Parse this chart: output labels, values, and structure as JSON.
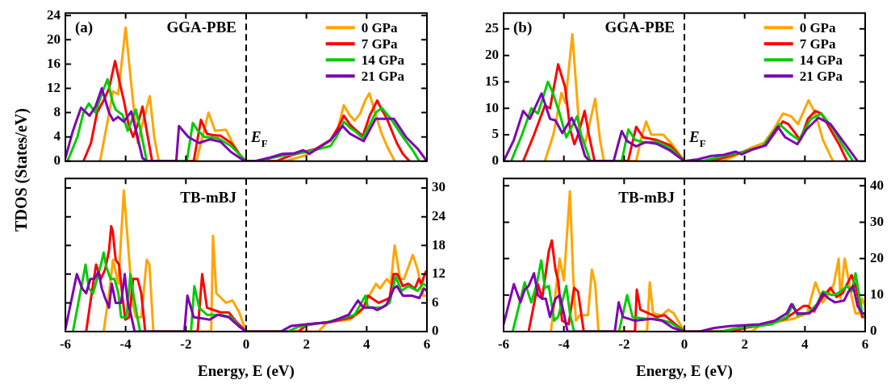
{
  "chart_data": [
    {
      "type": "line",
      "ylabel": "TDOS (States/eV)",
      "xlim": [
        -6,
        6
      ],
      "xticks": [
        -6,
        -4,
        -2,
        0,
        2,
        4,
        6
      ],
      "ylim": [
        0,
        24.4
      ],
      "yticks": [
        0,
        4,
        8,
        12,
        16,
        20,
        24
      ],
      "tick_labels": "y",
      "legend": "top right",
      "marker": "none",
      "line_style": "solid",
      "annotations": [
        "(a)",
        "GGA-PBE"
      ],
      "ref_lines": [
        {
          "axis": "x",
          "value": 0,
          "label": "E$_{F}$",
          "line_style": "dashed",
          "color": "#000000"
        }
      ],
      "series": [
        {
          "name": "0 GPa",
          "color": "#ffa500",
          "x": [
            -4.85,
            -4.62,
            -4.42,
            -4.25,
            -4.0,
            -3.8,
            -3.6,
            -3.45,
            -3.2,
            -3.05,
            -2.9,
            -1.65,
            -1.45,
            -1.25,
            -1.03,
            -0.67,
            -0.45,
            -0.2,
            0,
            1.3,
            2.0,
            2.5,
            2.8,
            3.05,
            3.24,
            3.45,
            3.6,
            3.78,
            3.95,
            4.09,
            4.31,
            4.5,
            4.67,
            4.93
          ],
          "values": [
            0,
            6,
            11.5,
            11,
            22,
            12,
            3,
            6,
            10.7,
            4,
            0,
            0,
            4,
            8,
            5,
            5.2,
            3,
            1,
            0,
            0,
            1,
            2.5,
            3.3,
            5.5,
            9.2,
            7.5,
            6.7,
            7.8,
            10,
            11.2,
            7.5,
            4.5,
            2.5,
            0
          ]
        },
        {
          "name": "7 GPa",
          "color": "#ff0000",
          "x": [
            -5.4,
            -5.15,
            -4.95,
            -4.73,
            -4.55,
            -4.35,
            -4.2,
            -4.06,
            -3.9,
            -3.75,
            -3.6,
            -3.44,
            -3.3,
            -3.12,
            -1.74,
            -1.6,
            -1.5,
            -1.3,
            -1.1,
            -0.85,
            -0.5,
            -0.2,
            0,
            1.0,
            1.5,
            2.3,
            2.8,
            3.05,
            3.24,
            3.45,
            3.6,
            3.87,
            4.1,
            4.35,
            4.5,
            4.67,
            5.0,
            5.2,
            5.42
          ],
          "values": [
            0,
            3,
            8,
            10,
            12,
            16.5,
            13,
            10,
            6,
            4,
            6,
            9,
            5,
            0,
            0,
            4,
            6.8,
            4.5,
            4.3,
            4.2,
            3,
            1,
            0,
            0,
            1,
            2,
            3.5,
            5.5,
            7.5,
            6,
            5.3,
            4.1,
            7.5,
            10,
            8.5,
            7,
            3,
            1.2,
            0
          ]
        },
        {
          "name": "14 GPa",
          "color": "#00cc00",
          "x": [
            -5.93,
            -5.6,
            -5.4,
            -5.22,
            -5.0,
            -4.8,
            -4.6,
            -4.45,
            -4.33,
            -4.1,
            -3.93,
            -3.66,
            -3.5,
            -3.3,
            -1.97,
            -1.77,
            -1.6,
            -1.39,
            -0.94,
            -0.5,
            -0.2,
            0,
            0.5,
            0.8,
            1.3,
            2.0,
            2.8,
            3.0,
            3.24,
            3.45,
            3.6,
            3.87,
            4.1,
            4.3,
            4.5,
            4.8,
            5.2,
            5.5,
            5.75
          ],
          "values": [
            0,
            4,
            8,
            9.5,
            8,
            11,
            13.5,
            10,
            8.5,
            7.6,
            5,
            8.5,
            5,
            0,
            0,
            6.3,
            5,
            4,
            3.8,
            2.5,
            1,
            0,
            0,
            0.5,
            1,
            1.5,
            2.5,
            4,
            6.5,
            5.5,
            5,
            3.8,
            6,
            8,
            8.8,
            7,
            4,
            2,
            0
          ]
        },
        {
          "name": "21 GPa",
          "color": "#7f00b2",
          "x": [
            -6,
            -5.75,
            -5.48,
            -5.2,
            -5.0,
            -4.79,
            -4.55,
            -4.41,
            -4.25,
            -4.06,
            -3.81,
            -3.61,
            -3.44,
            -3.3,
            -2.32,
            -2.23,
            -1.92,
            -1.57,
            -1.2,
            -0.85,
            -0.5,
            -0.2,
            0,
            0.3,
            0.8,
            1.2,
            1.6,
            1.9,
            2.1,
            2.4,
            2.8,
            3.2,
            3.45,
            3.9,
            4.3,
            4.5,
            4.9,
            5.3,
            5.7,
            6
          ],
          "values": [
            0.5,
            5,
            8.8,
            7.5,
            9,
            12,
            8,
            6.7,
            7.3,
            6.5,
            8.2,
            4,
            0.5,
            0,
            0,
            5.8,
            4,
            3,
            3.6,
            3.2,
            1.5,
            0.5,
            0,
            0,
            0.6,
            1.2,
            1.3,
            1.8,
            1.2,
            2.2,
            3.5,
            5.8,
            4.5,
            3.3,
            7,
            7,
            7,
            4,
            2,
            0
          ]
        }
      ]
    },
    {
      "type": "line",
      "xlabel": "Energy, E (eV)",
      "xlim": [
        -6,
        6
      ],
      "xticks": [
        -6,
        -4,
        -2,
        0,
        2,
        4,
        6
      ],
      "y2lim": [
        0,
        32
      ],
      "y2ticks": [
        0,
        6,
        12,
        18,
        24,
        30
      ],
      "marker": "none",
      "line_style": "solid",
      "annotations": [
        "TB-mBJ"
      ],
      "ref_lines": [
        {
          "axis": "x",
          "value": 0,
          "line_style": "dashed",
          "color": "#000000"
        }
      ],
      "series": [
        {
          "color": "#ffa500",
          "axis": "y2",
          "x": [
            -4.73,
            -4.55,
            -4.42,
            -4.24,
            -4.06,
            -3.88,
            -3.77,
            -3.66,
            -3.48,
            -3.3,
            -3.21,
            -3.08,
            -1.16,
            -1.1,
            -0.99,
            -0.67,
            -0.45,
            -0.23,
            0,
            2.4,
            2.7,
            3.42,
            3.78,
            4.04,
            4.31,
            4.44,
            4.67,
            4.8,
            4.93,
            5.11,
            5.24,
            5.53,
            5.69,
            5.87,
            6
          ],
          "values": [
            0,
            8,
            15,
            10,
            29.5,
            15,
            6,
            3,
            3,
            15,
            14,
            0,
            0,
            20,
            8,
            6,
            6.5,
            4,
            0,
            0,
            2,
            2.5,
            4,
            7,
            10,
            9,
            11,
            10,
            18,
            11,
            11,
            16,
            13,
            7.5,
            7.5
          ]
        },
        {
          "color": "#ff0000",
          "axis": "y2",
          "x": [
            -5.31,
            -5.15,
            -4.98,
            -4.82,
            -4.68,
            -4.55,
            -4.48,
            -4.43,
            -4.33,
            -4.22,
            -4.1,
            -4.01,
            -3.88,
            -3.75,
            -3.6,
            -3.48,
            -3.35,
            -1.61,
            -1.46,
            -1.3,
            -0.85,
            -0.58,
            -0.32,
            0,
            1.73,
            2.04,
            2.8,
            3.51,
            3.91,
            4.04,
            4.4,
            4.76,
            4.89,
            5.02,
            5.2,
            5.38,
            5.6,
            5.73,
            5.82,
            5.96,
            6
          ],
          "values": [
            0,
            7,
            14,
            11,
            13,
            17,
            22,
            21,
            15,
            14,
            7,
            2.5,
            3,
            11,
            11,
            8,
            0,
            0,
            12,
            5,
            4,
            4,
            2,
            0,
            0,
            1.5,
            2,
            3,
            5,
            7.5,
            6,
            7,
            12,
            12,
            9.5,
            10,
            9,
            11,
            10,
            12.5,
            12
          ]
        },
        {
          "color": "#00cc00",
          "axis": "y2",
          "x": [
            -5.75,
            -5.33,
            -5.22,
            -5.08,
            -4.82,
            -4.73,
            -4.64,
            -4.5,
            -4.37,
            -4.24,
            -4.15,
            -3.97,
            -3.84,
            -3.75,
            -3.61,
            -3.52,
            -1.83,
            -1.72,
            -1.56,
            -1.3,
            -0.85,
            -0.5,
            -0.22,
            0,
            1.38,
            1.73,
            2.7,
            3.6,
            3.96,
            4.04,
            4.49,
            4.76,
            4.96,
            5.16,
            5.38,
            5.69,
            5.87,
            6
          ],
          "values": [
            0,
            14,
            9,
            8,
            14,
            16.5,
            13.5,
            11,
            11,
            8,
            3,
            3,
            12,
            8,
            3,
            0,
            0,
            9.5,
            5,
            3.5,
            3.5,
            3,
            1,
            0,
            0,
            1,
            2,
            3.5,
            7.5,
            5,
            5,
            6,
            11.5,
            8.5,
            9.5,
            8.5,
            10,
            9.5
          ]
        },
        {
          "color": "#7f00b2",
          "axis": "y2",
          "x": [
            -6,
            -5.62,
            -5.44,
            -5.31,
            -5.17,
            -5.04,
            -4.9,
            -4.79,
            -4.68,
            -4.55,
            -4.46,
            -4.33,
            -4.15,
            -4.03,
            -3.93,
            -3.84,
            -3.7,
            -2.05,
            -1.95,
            -1.74,
            -1.21,
            -0.94,
            -0.58,
            -0.22,
            0,
            1.15,
            1.5,
            2.0,
            2.8,
            3.4,
            3.71,
            3.9,
            4.2,
            4.35,
            4.65,
            4.9,
            5.0,
            5.2,
            5.5,
            5.75,
            5.9,
            6
          ],
          "values": [
            0.5,
            12,
            9,
            8,
            11,
            11,
            12.5,
            9,
            7,
            5,
            10,
            6,
            6,
            12,
            6,
            4,
            0,
            0,
            7.5,
            3,
            2.5,
            3.5,
            3,
            1,
            0,
            0,
            1.2,
            1.5,
            2,
            3.5,
            6.5,
            5,
            5,
            4.5,
            5.5,
            9,
            9.5,
            7.5,
            7.5,
            7,
            9,
            8.5
          ]
        }
      ]
    },
    {
      "type": "line",
      "xlim": [
        -6,
        6
      ],
      "xticks": [
        -6,
        -4,
        -2,
        0,
        2,
        4,
        6
      ],
      "ylim": [
        0,
        28
      ],
      "yticks": [
        0,
        5,
        10,
        15,
        20,
        25
      ],
      "tick_labels": "y",
      "legend": "top right",
      "marker": "none",
      "line_style": "solid",
      "annotations": [
        "(b)",
        "GGA-PBE"
      ],
      "ref_lines": [
        {
          "axis": "x",
          "value": 0,
          "label": "E$_{F}$",
          "line_style": "dashed",
          "color": "#000000"
        }
      ],
      "series": [
        {
          "name": "0 GPa",
          "color": "#ffa500",
          "x": [
            -4.63,
            -4.35,
            -4.08,
            -3.95,
            -3.72,
            -3.47,
            -3.29,
            -2.96,
            -2.8,
            -2.67,
            -1.6,
            -1.45,
            -1.27,
            -1.1,
            -0.7,
            -0.38,
            0,
            1.22,
            1.67,
            2.2,
            2.65,
            2.96,
            3.27,
            3.54,
            3.77,
            4.12,
            4.35,
            4.6,
            4.93
          ],
          "values": [
            0,
            5,
            12.9,
            11,
            24,
            5,
            3.5,
            11.8,
            4,
            0,
            0,
            4,
            7.5,
            5,
            5,
            3,
            0,
            0,
            1,
            2.5,
            3.5,
            6,
            9,
            8.5,
            7,
            11.5,
            9,
            4,
            0
          ]
        },
        {
          "name": "7 GPa",
          "color": "#ff0000",
          "x": [
            -5.35,
            -4.99,
            -4.63,
            -4.46,
            -4.19,
            -3.96,
            -3.79,
            -3.65,
            -3.53,
            -3.31,
            -3.17,
            -2.98,
            -1.87,
            -1.6,
            -1.37,
            -0.92,
            -0.47,
            0,
            0.9,
            1.5,
            2.1,
            2.7,
            3.27,
            3.45,
            3.85,
            4.1,
            4.35,
            4.55,
            4.85,
            5.15,
            5.4
          ],
          "values": [
            0,
            5,
            10.5,
            10,
            18.3,
            14,
            6,
            3.2,
            5,
            9.5,
            5,
            0,
            0,
            6.5,
            4.5,
            4,
            3,
            0,
            0,
            1,
            2,
            3,
            7.5,
            7,
            4,
            8,
            9.5,
            9,
            6,
            3,
            0
          ]
        },
        {
          "name": "14 GPa",
          "color": "#00cc00",
          "x": [
            -5.75,
            -5.39,
            -5.08,
            -4.86,
            -4.53,
            -4.37,
            -4.14,
            -3.92,
            -3.56,
            -3.43,
            -3.12,
            -2.08,
            -1.86,
            -1.63,
            -1.28,
            -0.92,
            -0.47,
            0,
            0.6,
            1.3,
            2.0,
            2.6,
            3.15,
            3.55,
            3.8,
            4.2,
            4.55,
            4.95,
            5.25,
            5.6
          ],
          "values": [
            0,
            5,
            10,
            9,
            15,
            13,
            9,
            4.5,
            8.5,
            5,
            0,
            0,
            6,
            4,
            3.5,
            3.7,
            2.5,
            0,
            0,
            1,
            1.8,
            2.8,
            7,
            5,
            4,
            8,
            9,
            6,
            3,
            0
          ]
        },
        {
          "name": "21 GPa",
          "color": "#7f00b2",
          "x": [
            -6,
            -5.66,
            -5.35,
            -5.13,
            -4.74,
            -4.46,
            -4.28,
            -4.05,
            -3.74,
            -3.56,
            -3.3,
            -3.15,
            -2.35,
            -2.08,
            -1.9,
            -1.6,
            -1.28,
            -0.92,
            -0.47,
            0,
            0.4,
            0.9,
            1.3,
            1.7,
            1.9,
            2.3,
            2.7,
            3.1,
            3.35,
            3.75,
            4.05,
            4.45,
            4.85,
            5.3,
            5.75
          ],
          "values": [
            0,
            4,
            9.5,
            8,
            12.8,
            8,
            7.7,
            5.3,
            8.2,
            6,
            1,
            0,
            0,
            5.7,
            3.8,
            2.8,
            3.6,
            3.3,
            2,
            0,
            0.3,
            1,
            1.2,
            1.8,
            1.3,
            2.3,
            3,
            6.5,
            4.5,
            3.2,
            6,
            8.2,
            7,
            3.5,
            0
          ]
        }
      ]
    },
    {
      "type": "line",
      "xlabel": "Energy, E (eV)",
      "xlim": [
        -6,
        6
      ],
      "xticks": [
        -6,
        -4,
        -2,
        0,
        2,
        4,
        6
      ],
      "y2lim": [
        0,
        42
      ],
      "y2ticks": [
        0,
        10,
        20,
        30,
        40
      ],
      "marker": "none",
      "line_style": "solid",
      "annotations": [
        "TB-mBJ"
      ],
      "ref_lines": [
        {
          "axis": "x",
          "value": 0,
          "line_style": "dashed",
          "color": "#000000"
        }
      ],
      "series": [
        {
          "color": "#ffa500",
          "axis": "y2",
          "x": [
            -4.43,
            -4.14,
            -4.0,
            -3.8,
            -3.69,
            -3.6,
            -3.47,
            -3.2,
            -3.07,
            -2.96,
            -2.85,
            -1.24,
            -1.15,
            -1.04,
            -0.75,
            -0.53,
            -0.35,
            0,
            2.24,
            2.55,
            3.62,
            4.07,
            4.35,
            4.6,
            4.83,
            4.96,
            5.12,
            5.18,
            5.32,
            5.54,
            5.68,
            5.8,
            5.9,
            6
          ],
          "values": [
            0,
            20,
            14,
            38.5,
            15,
            3,
            4.5,
            4.5,
            17,
            13,
            0,
            0,
            13.5,
            5,
            4.5,
            6,
            5,
            0,
            0,
            2,
            3.5,
            5,
            13.5,
            8,
            11,
            13,
            20,
            9,
            20,
            10,
            5,
            5,
            9,
            7
          ]
        },
        {
          "color": "#ff0000",
          "axis": "y2",
          "x": [
            -5.17,
            -4.86,
            -4.72,
            -4.5,
            -4.4,
            -4.28,
            -4.19,
            -4.06,
            -3.84,
            -3.66,
            -3.53,
            -3.34,
            -1.64,
            -1.58,
            -1.46,
            -1.19,
            -0.92,
            -0.66,
            -0.3,
            0,
            1.6,
            2.0,
            2.8,
            3.35,
            3.95,
            4.1,
            4.3,
            4.55,
            4.85,
            5.05,
            5.25,
            5.55,
            5.7,
            5.9,
            6
          ],
          "values": [
            0,
            13,
            9,
            22,
            25,
            17,
            14,
            3,
            2,
            12,
            11,
            0,
            0,
            11.5,
            6,
            5,
            4,
            4.5,
            2,
            0,
            0,
            1,
            2,
            3.5,
            7,
            7,
            5.5,
            9,
            12,
            9.5,
            10.5,
            15.5,
            12,
            4,
            4
          ]
        },
        {
          "color": "#00cc00",
          "axis": "y2",
          "x": [
            -5.7,
            -5.55,
            -5.3,
            -5.08,
            -4.9,
            -4.75,
            -4.63,
            -4.5,
            -4.32,
            -4.19,
            -3.92,
            -3.79,
            -3.66,
            -2.17,
            -1.9,
            -1.72,
            -1.28,
            -0.92,
            -0.47,
            0,
            1.2,
            1.8,
            2.9,
            3.4,
            3.6,
            3.75,
            4.1,
            4.4,
            4.6,
            4.9,
            5.1,
            5.4,
            5.55,
            5.68,
            5.9,
            6
          ],
          "values": [
            0,
            5,
            13.5,
            8,
            13,
            19.5,
            12,
            12.5,
            3,
            4,
            12.5,
            4.5,
            0,
            0,
            10,
            4,
            3.5,
            3.5,
            2.5,
            0,
            0,
            1,
            2,
            4,
            7.5,
            4.5,
            5,
            7.5,
            11,
            10,
            10.5,
            12.5,
            11,
            16,
            5,
            4
          ]
        },
        {
          "color": "#7f00b2",
          "axis": "y2",
          "x": [
            -6,
            -5.66,
            -5.44,
            -5.3,
            -5.17,
            -4.99,
            -4.86,
            -4.72,
            -4.6,
            -4.46,
            -4.28,
            -4.14,
            -4.0,
            -3.88,
            -2.31,
            -2.18,
            -2.04,
            -1.64,
            -1.1,
            -0.74,
            -0.38,
            0,
            0.5,
            1.0,
            1.5,
            2.5,
            3.0,
            3.4,
            3.55,
            3.75,
            4.15,
            4.35,
            4.6,
            4.8,
            5.0,
            5.3,
            5.45,
            5.6,
            5.75,
            5.9,
            6
          ],
          "values": [
            2,
            13,
            8,
            11.5,
            12.5,
            16,
            10,
            9,
            9,
            4,
            9,
            10,
            5,
            0,
            0,
            8,
            4,
            3,
            3.5,
            3,
            1,
            0,
            0,
            1,
            1.5,
            2,
            3,
            5,
            7.5,
            5,
            5,
            6.5,
            10.5,
            9,
            8,
            8.5,
            11,
            12.5,
            7,
            5,
            5
          ]
        }
      ]
    }
  ]
}
